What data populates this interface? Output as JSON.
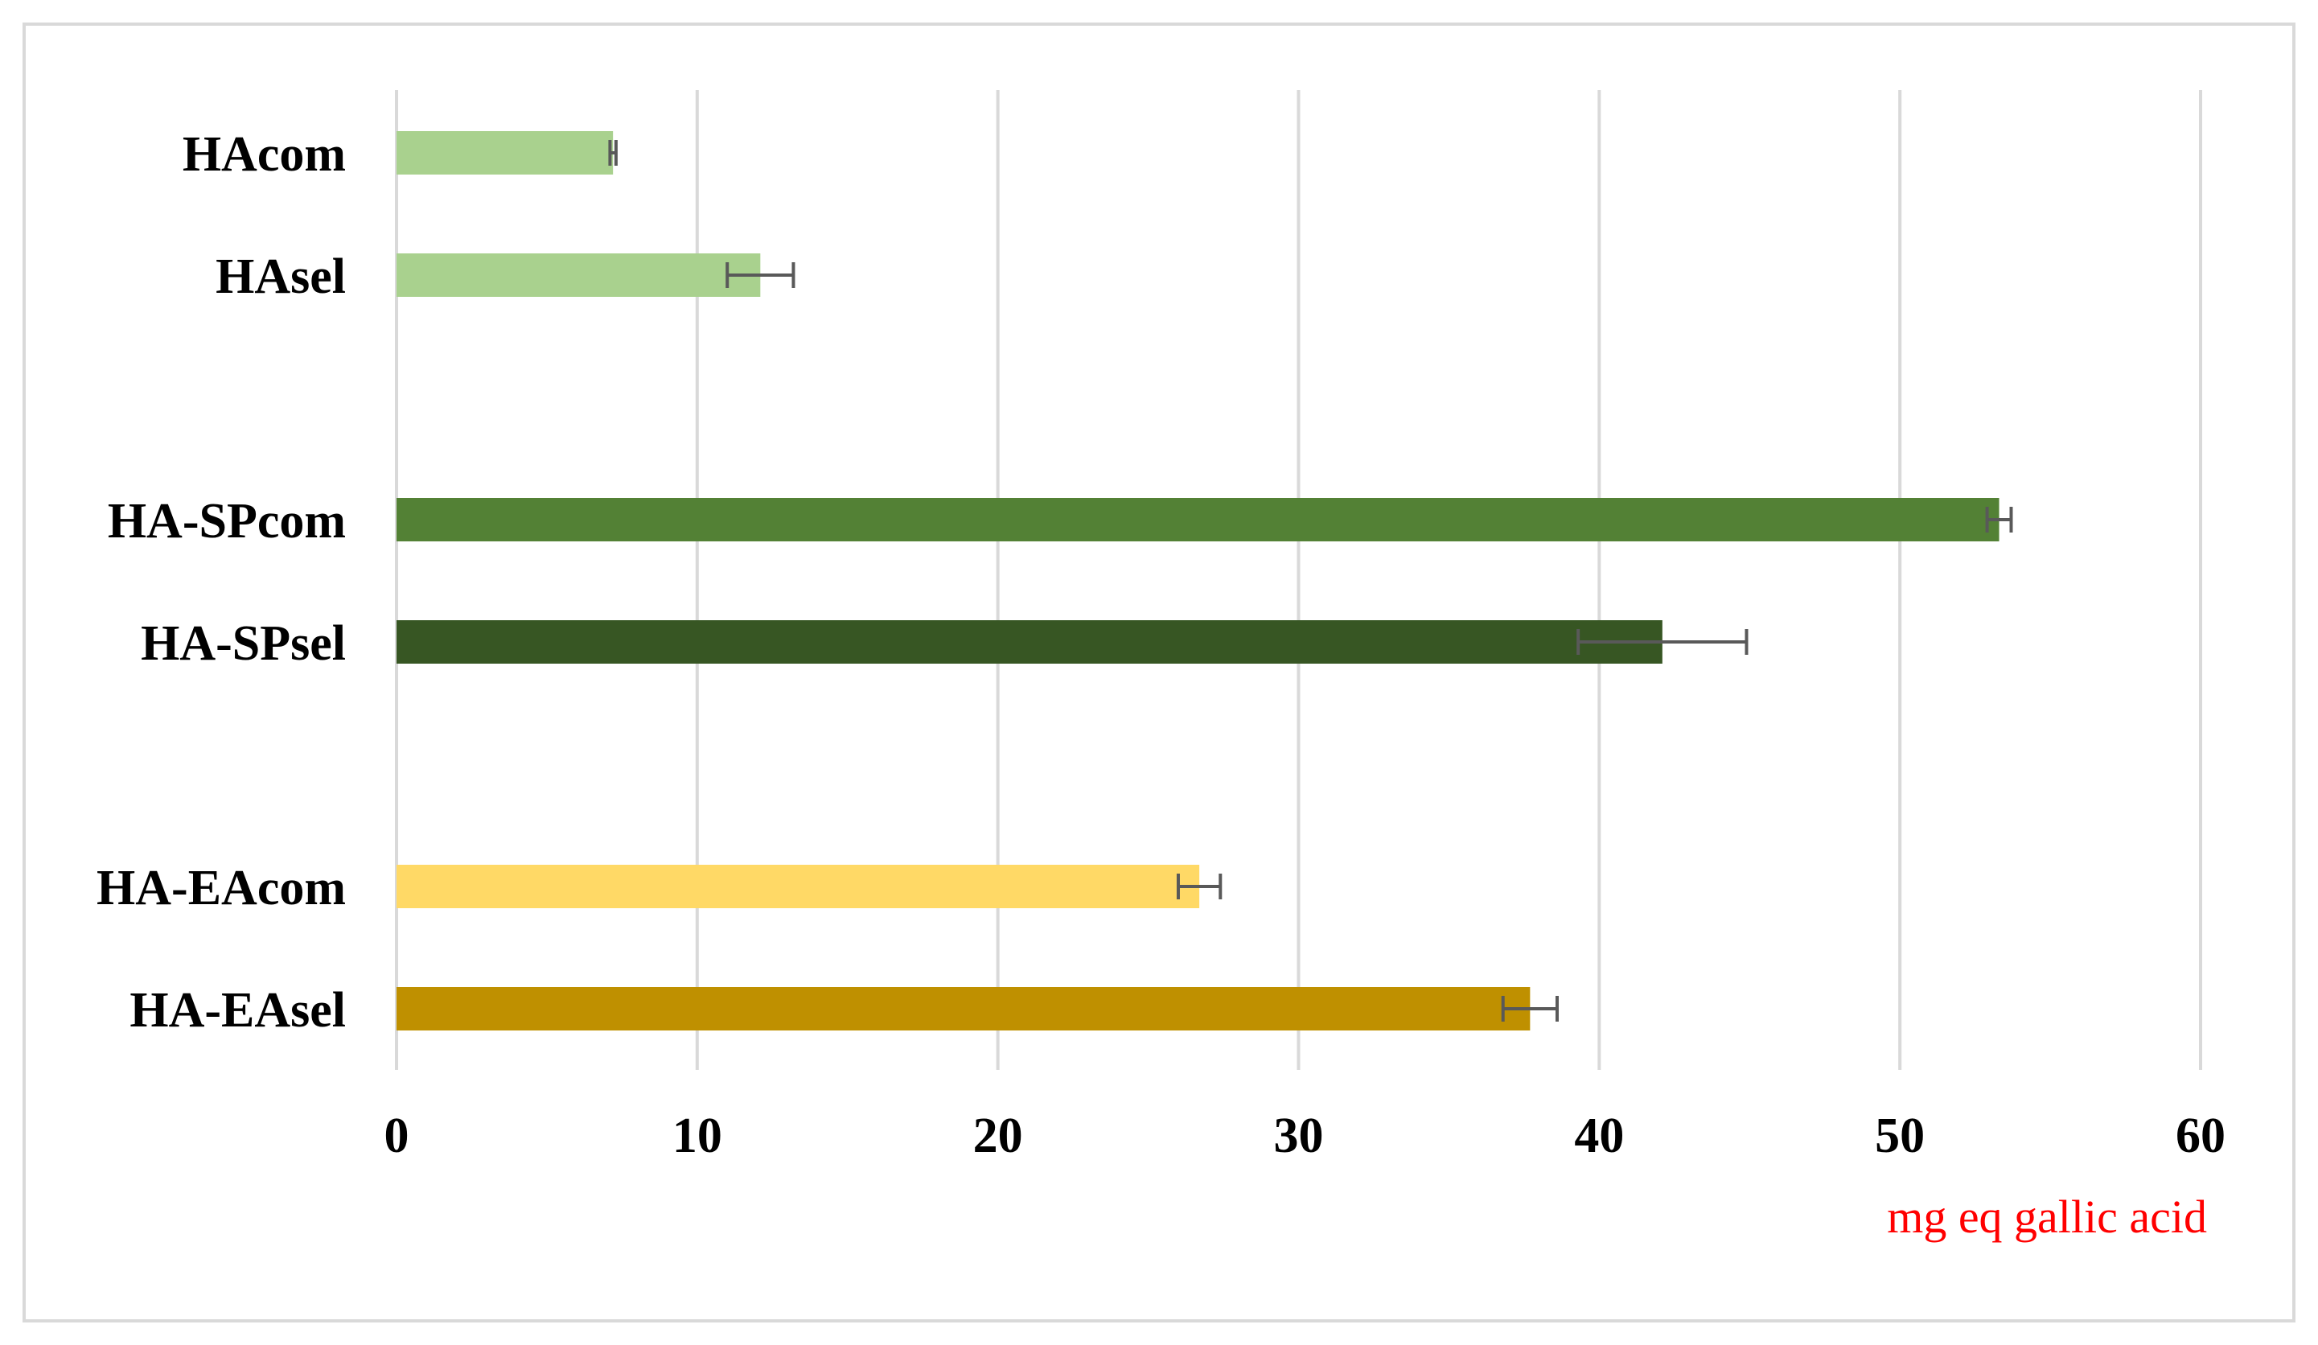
{
  "chart_data": {
    "type": "bar",
    "orientation": "horizontal",
    "title": "",
    "xlabel": "mg eq gallic acid",
    "ylabel": "",
    "xlim": [
      0,
      60
    ],
    "xticks": [
      0,
      10,
      20,
      30,
      40,
      50,
      60
    ],
    "grid": "vertical",
    "legend": "none",
    "groups": [
      {
        "bars": [
          {
            "label": "HAcom",
            "value": 7.2,
            "error": 0.1,
            "color": "#a9d18e"
          },
          {
            "label": "HAsel",
            "value": 12.1,
            "error": 1.1,
            "color": "#a9d18e"
          }
        ]
      },
      {
        "bars": [
          {
            "label": "HA-SPcom",
            "value": 53.3,
            "error": 0.4,
            "color": "#538135"
          },
          {
            "label": "HA-SPsel",
            "value": 42.1,
            "error": 2.8,
            "color": "#375623"
          }
        ]
      },
      {
        "bars": [
          {
            "label": "HA-EAcom",
            "value": 26.7,
            "error": 0.7,
            "color": "#ffd966"
          },
          {
            "label": "HA-EAsel",
            "value": 37.7,
            "error": 0.9,
            "color": "#bf9000"
          }
        ]
      }
    ],
    "gridline_color": "#d9d9d9",
    "errorbar_color": "#595959",
    "xlabel_color": "#ff0000"
  }
}
